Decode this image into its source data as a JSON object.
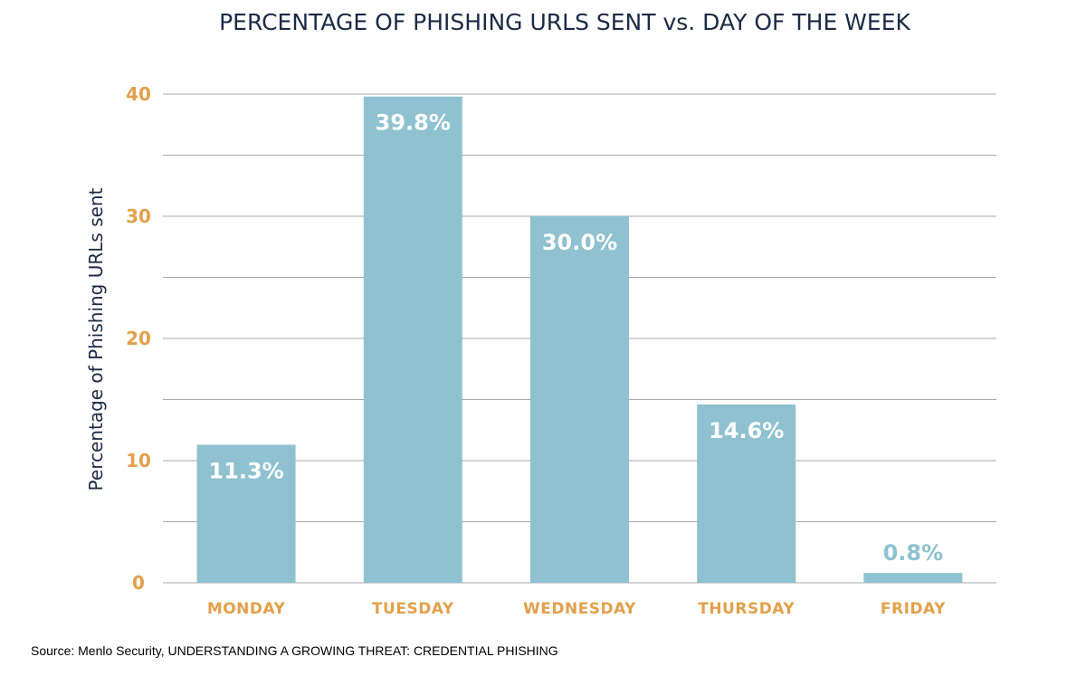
{
  "chart_data": {
    "type": "bar",
    "title": "PERCENTAGE OF PHISHING URLS SENT vs. DAY OF THE WEEK",
    "xlabel": "",
    "ylabel": "Percentage of Phishing URLs sent",
    "categories": [
      "MONDAY",
      "TUESDAY",
      "WEDNESDAY",
      "THURSDAY",
      "FRIDAY"
    ],
    "values": [
      11.3,
      39.8,
      30.0,
      14.6,
      0.8
    ],
    "data_labels": [
      "11.3%",
      "39.8%",
      "30.0%",
      "14.6%",
      "0.8%"
    ],
    "ylim": [
      0,
      40
    ],
    "yticks": [
      0,
      10,
      20,
      30,
      40
    ],
    "grid": true,
    "legend": "none"
  },
  "source": "Source: Menlo Security, UNDERSTANDING A GROWING THREAT: CREDENTIAL PHISHING",
  "colors": {
    "bar": "#8fc1d0",
    "label_inside": "#ffffff",
    "label_outside": "#8fc1d0",
    "tick": "#e3a04a",
    "title": "#1b2a44",
    "grid": "#a9a9a9"
  }
}
